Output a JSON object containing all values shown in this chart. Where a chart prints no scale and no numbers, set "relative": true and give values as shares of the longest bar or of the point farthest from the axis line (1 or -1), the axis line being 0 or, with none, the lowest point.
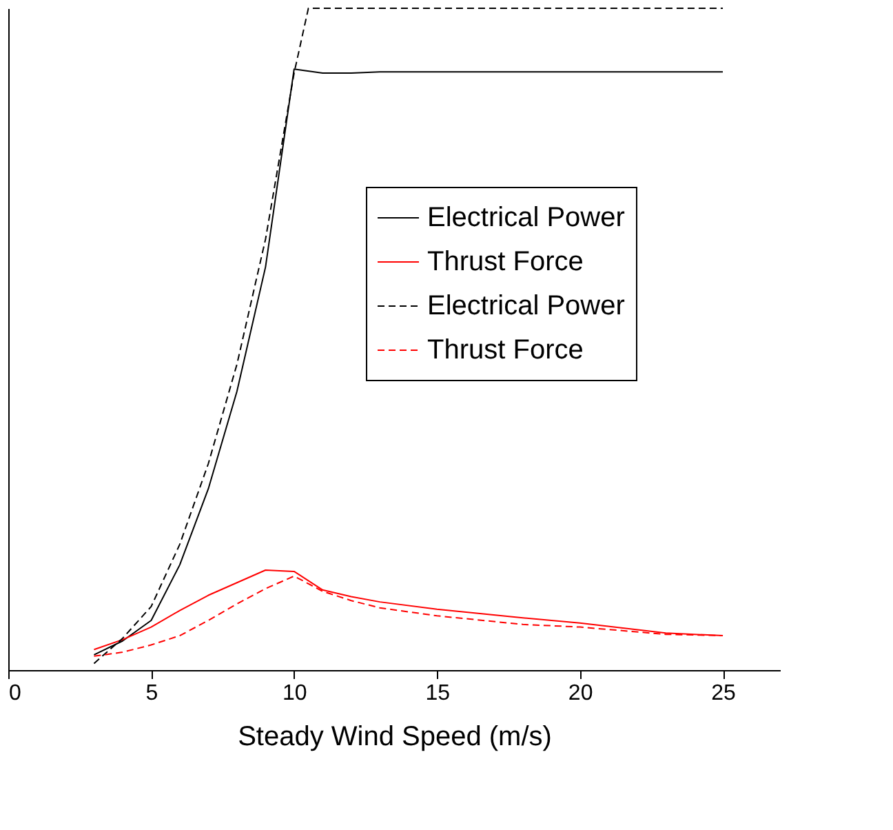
{
  "chart_data": {
    "type": "line",
    "relative": true,
    "xlabel": "Steady Wind Speed (m/s)",
    "xlim": [
      0,
      27
    ],
    "xticks": [
      0,
      5,
      10,
      15,
      20,
      25
    ],
    "legend": "right",
    "grid": false,
    "series": [
      {
        "name": "Electrical Power",
        "color": "#000000",
        "line_style": "solid",
        "x": [
          3,
          4,
          5,
          6,
          7,
          8,
          9,
          10,
          11,
          12,
          13,
          25
        ],
        "values": [
          0.023,
          0.044,
          0.075,
          0.159,
          0.274,
          0.421,
          0.609,
          0.908,
          0.902,
          0.902,
          0.904,
          0.904
        ]
      },
      {
        "name": "Thrust Force",
        "color": "#ff0000",
        "line_style": "solid",
        "x": [
          3,
          4,
          5,
          6,
          7,
          8,
          9,
          10,
          11,
          12,
          13,
          15,
          18,
          20,
          23,
          25
        ],
        "values": [
          0.031,
          0.046,
          0.065,
          0.09,
          0.113,
          0.132,
          0.151,
          0.149,
          0.121,
          0.111,
          0.103,
          0.092,
          0.079,
          0.071,
          0.056,
          0.052
        ]
      },
      {
        "name": "Electrical Power",
        "color": "#000000",
        "line_style": "dashed",
        "x": [
          3,
          4,
          5,
          6,
          7,
          8,
          9,
          10,
          10.5,
          25
        ],
        "values": [
          0.01,
          0.048,
          0.096,
          0.19,
          0.312,
          0.462,
          0.651,
          0.902,
          1.0,
          1.0
        ]
      },
      {
        "name": "Thrust Force",
        "color": "#ff0000",
        "line_style": "dashed",
        "x": [
          3,
          4,
          5,
          6,
          7,
          8,
          9,
          10,
          11,
          12,
          13,
          15,
          18,
          20,
          23,
          25
        ],
        "values": [
          0.021,
          0.027,
          0.038,
          0.052,
          0.075,
          0.1,
          0.123,
          0.142,
          0.119,
          0.105,
          0.094,
          0.082,
          0.069,
          0.065,
          0.054,
          0.052
        ]
      }
    ]
  }
}
